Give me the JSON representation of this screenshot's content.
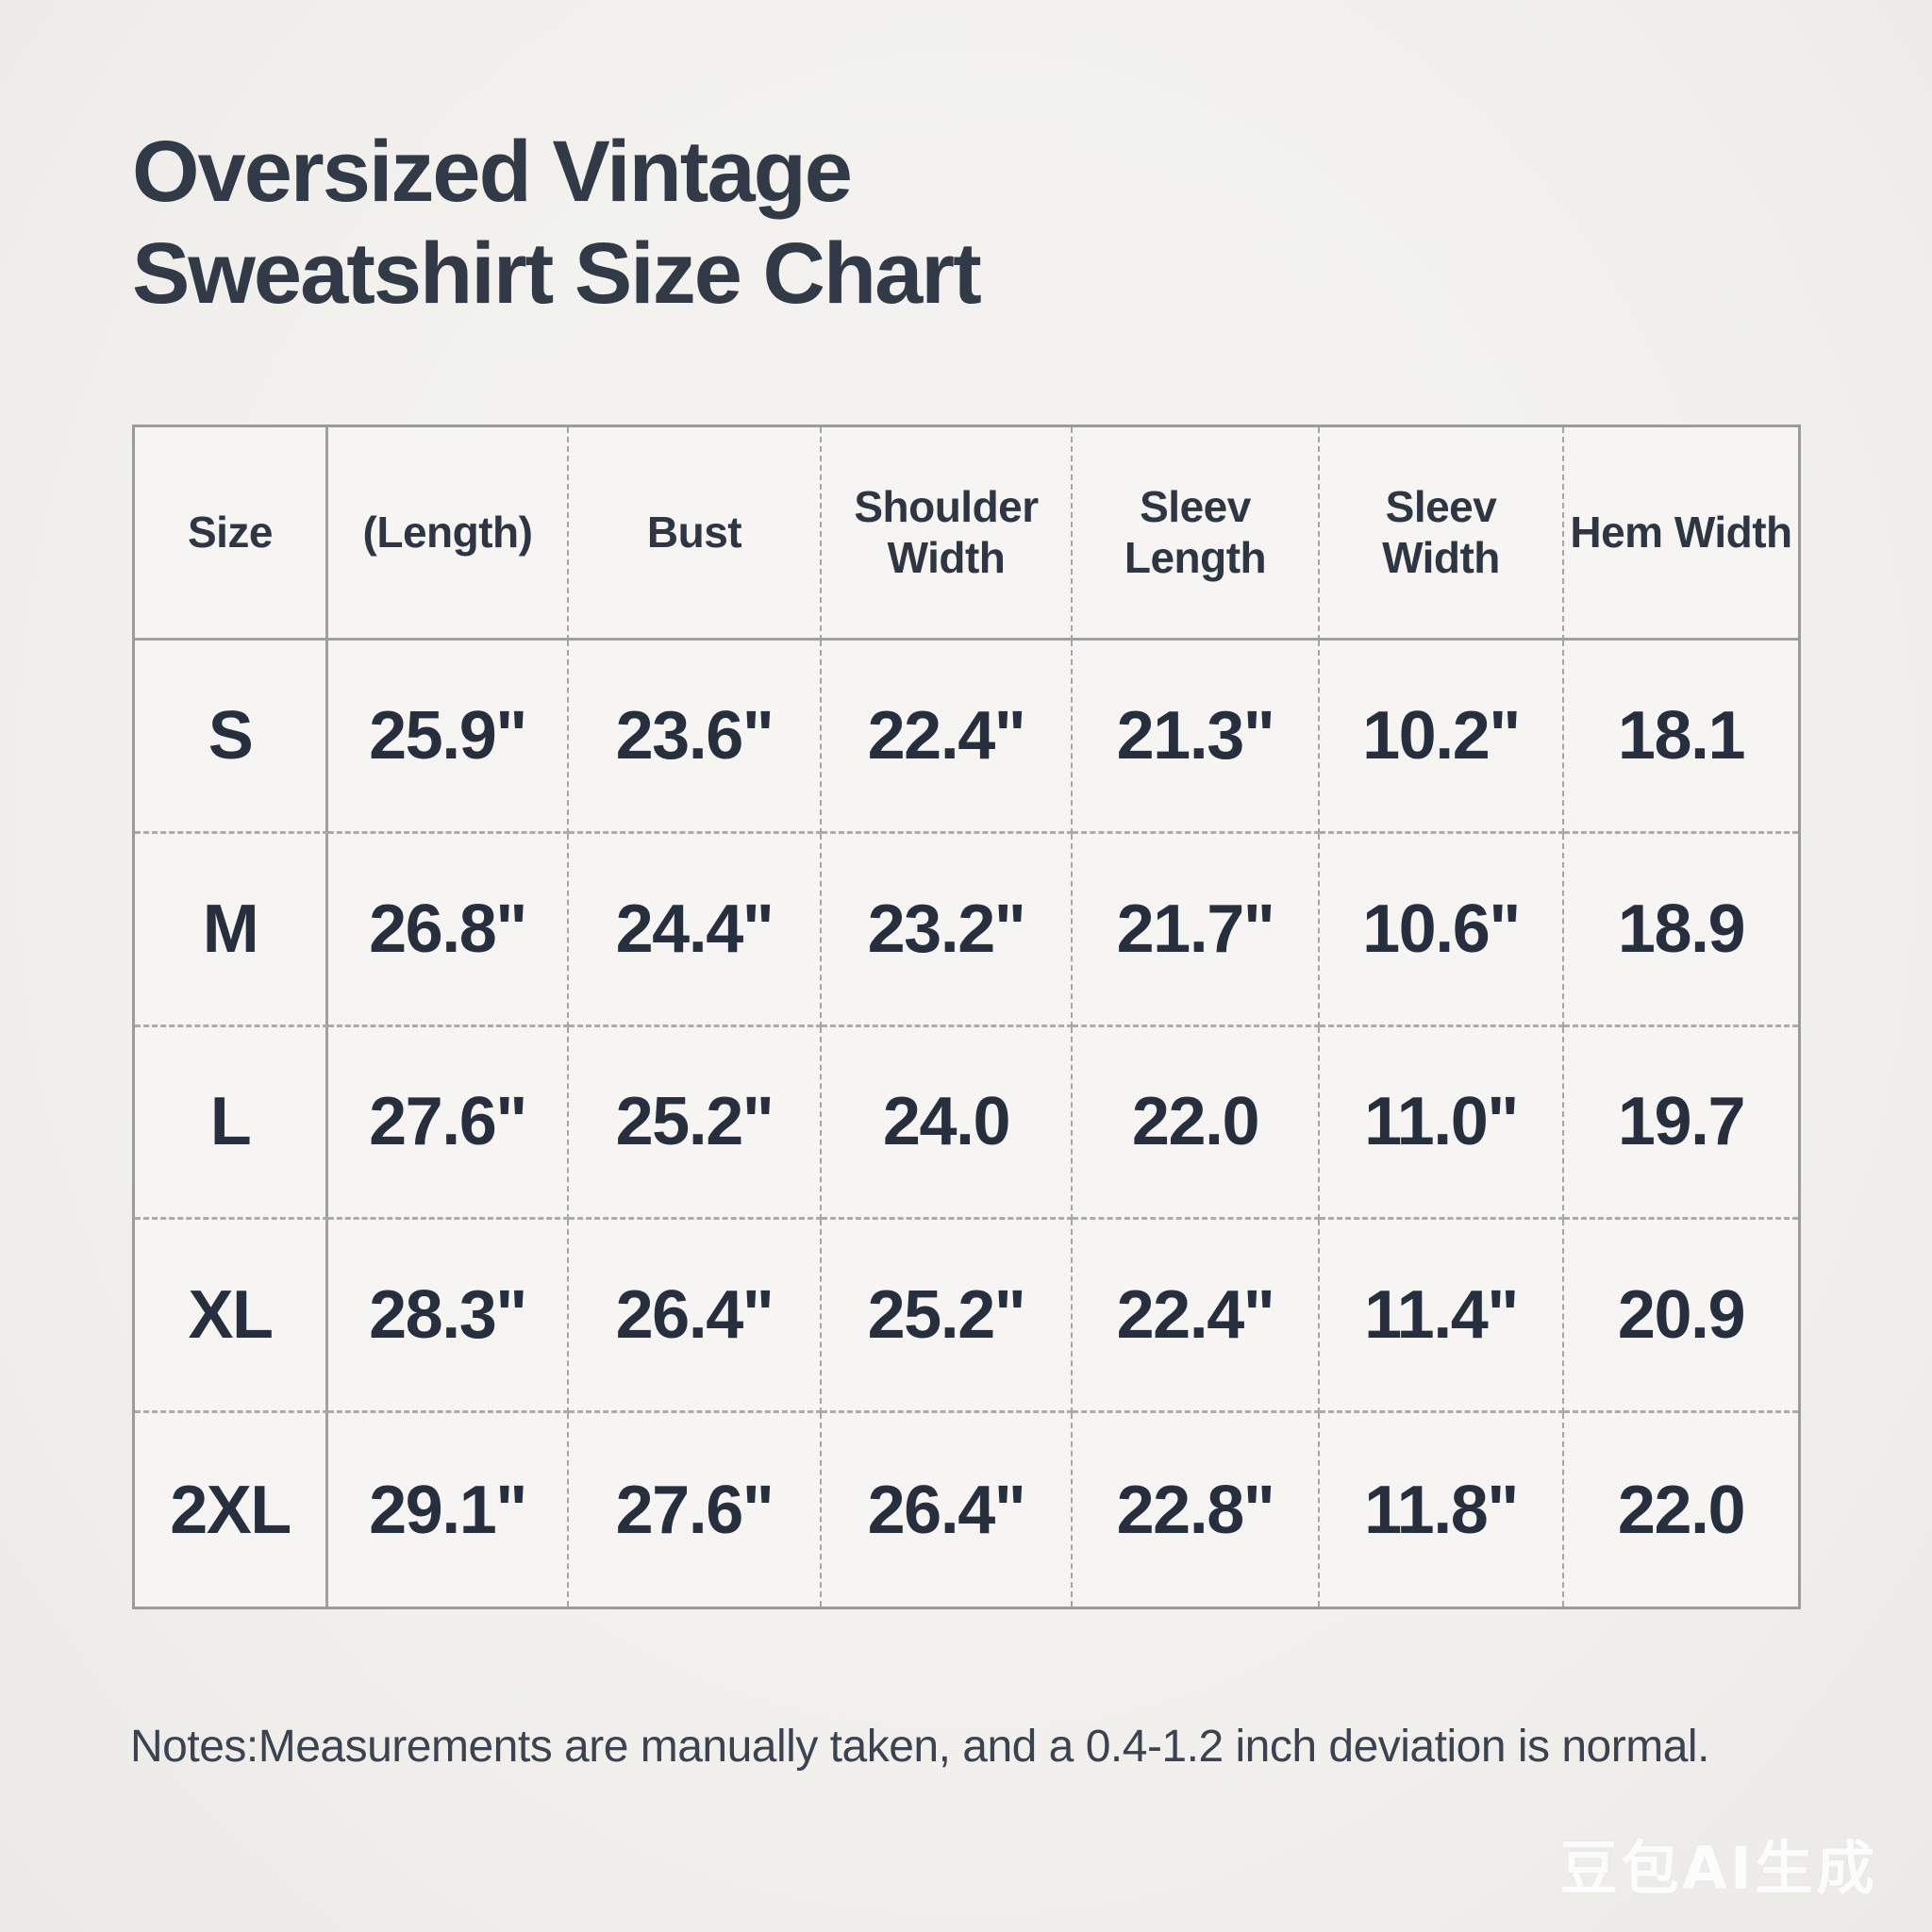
{
  "title": "Oversized Vintage\nSweatshirt Size Chart",
  "notes": "Notes:Measurements are manually taken, and a 0.4-1.2 inch deviation is normal.",
  "watermark": "豆包AI生成",
  "colors": {
    "background": "#f2f1ee",
    "table_background": "#f6f5f3",
    "title_text": "#323a48",
    "data_text": "#272f3e",
    "solid_border": "#9b9b9b",
    "dashed_border": "#a5a5a5",
    "watermark_text": "#ffffff"
  },
  "table": {
    "columns": [
      "Size",
      "(Length)",
      "Bust",
      "Shoulder\nWidth",
      "Sleev\nLength",
      "Sleev\nWidth",
      "Hem Width"
    ],
    "rows": [
      {
        "size": "S",
        "values": [
          "25.9\"",
          "23.6\"",
          "22.4\"",
          "21.3\"",
          "10.2\"",
          "18.1"
        ]
      },
      {
        "size": "M",
        "values": [
          "26.8\"",
          "24.4\"",
          "23.2\"",
          "21.7\"",
          "10.6\"",
          "18.9"
        ]
      },
      {
        "size": "L",
        "values": [
          "27.6\"",
          "25.2\"",
          "24.0",
          "22.0",
          "11.0\"",
          "19.7"
        ]
      },
      {
        "size": "XL",
        "values": [
          "28.3\"",
          "26.4\"",
          "25.2\"",
          "22.4\"",
          "11.4\"",
          "20.9"
        ]
      },
      {
        "size": "2XL",
        "values": [
          "29.1\"",
          "27.6\"",
          "26.4\"",
          "22.8\"",
          "11.8\"",
          "22.0"
        ]
      }
    ]
  },
  "chart_data": {
    "type": "table",
    "title": "Oversized Vintage Sweatshirt Size Chart",
    "columns": [
      "Size",
      "(Length)",
      "Bust",
      "Shoulder Width",
      "Sleev Length",
      "Sleev Width",
      "Hem Width"
    ],
    "rows": [
      [
        "S",
        "25.9\"",
        "23.6\"",
        "22.4\"",
        "21.3\"",
        "10.2\"",
        "18.1"
      ],
      [
        "M",
        "26.8\"",
        "24.4\"",
        "23.2\"",
        "21.7\"",
        "10.6\"",
        "18.9"
      ],
      [
        "L",
        "27.6\"",
        "25.2\"",
        "24.0",
        "22.0",
        "11.0\"",
        "19.7"
      ],
      [
        "XL",
        "28.3\"",
        "26.4\"",
        "25.2\"",
        "22.4\"",
        "11.4\"",
        "20.9"
      ],
      [
        "2XL",
        "29.1\"",
        "27.6\"",
        "26.4\"",
        "22.8\"",
        "11.8\"",
        "22.0"
      ]
    ],
    "footnote": "Notes:Measurements are manually taken, and a 0.4-1.2 inch deviation is normal.",
    "units": "inches"
  }
}
